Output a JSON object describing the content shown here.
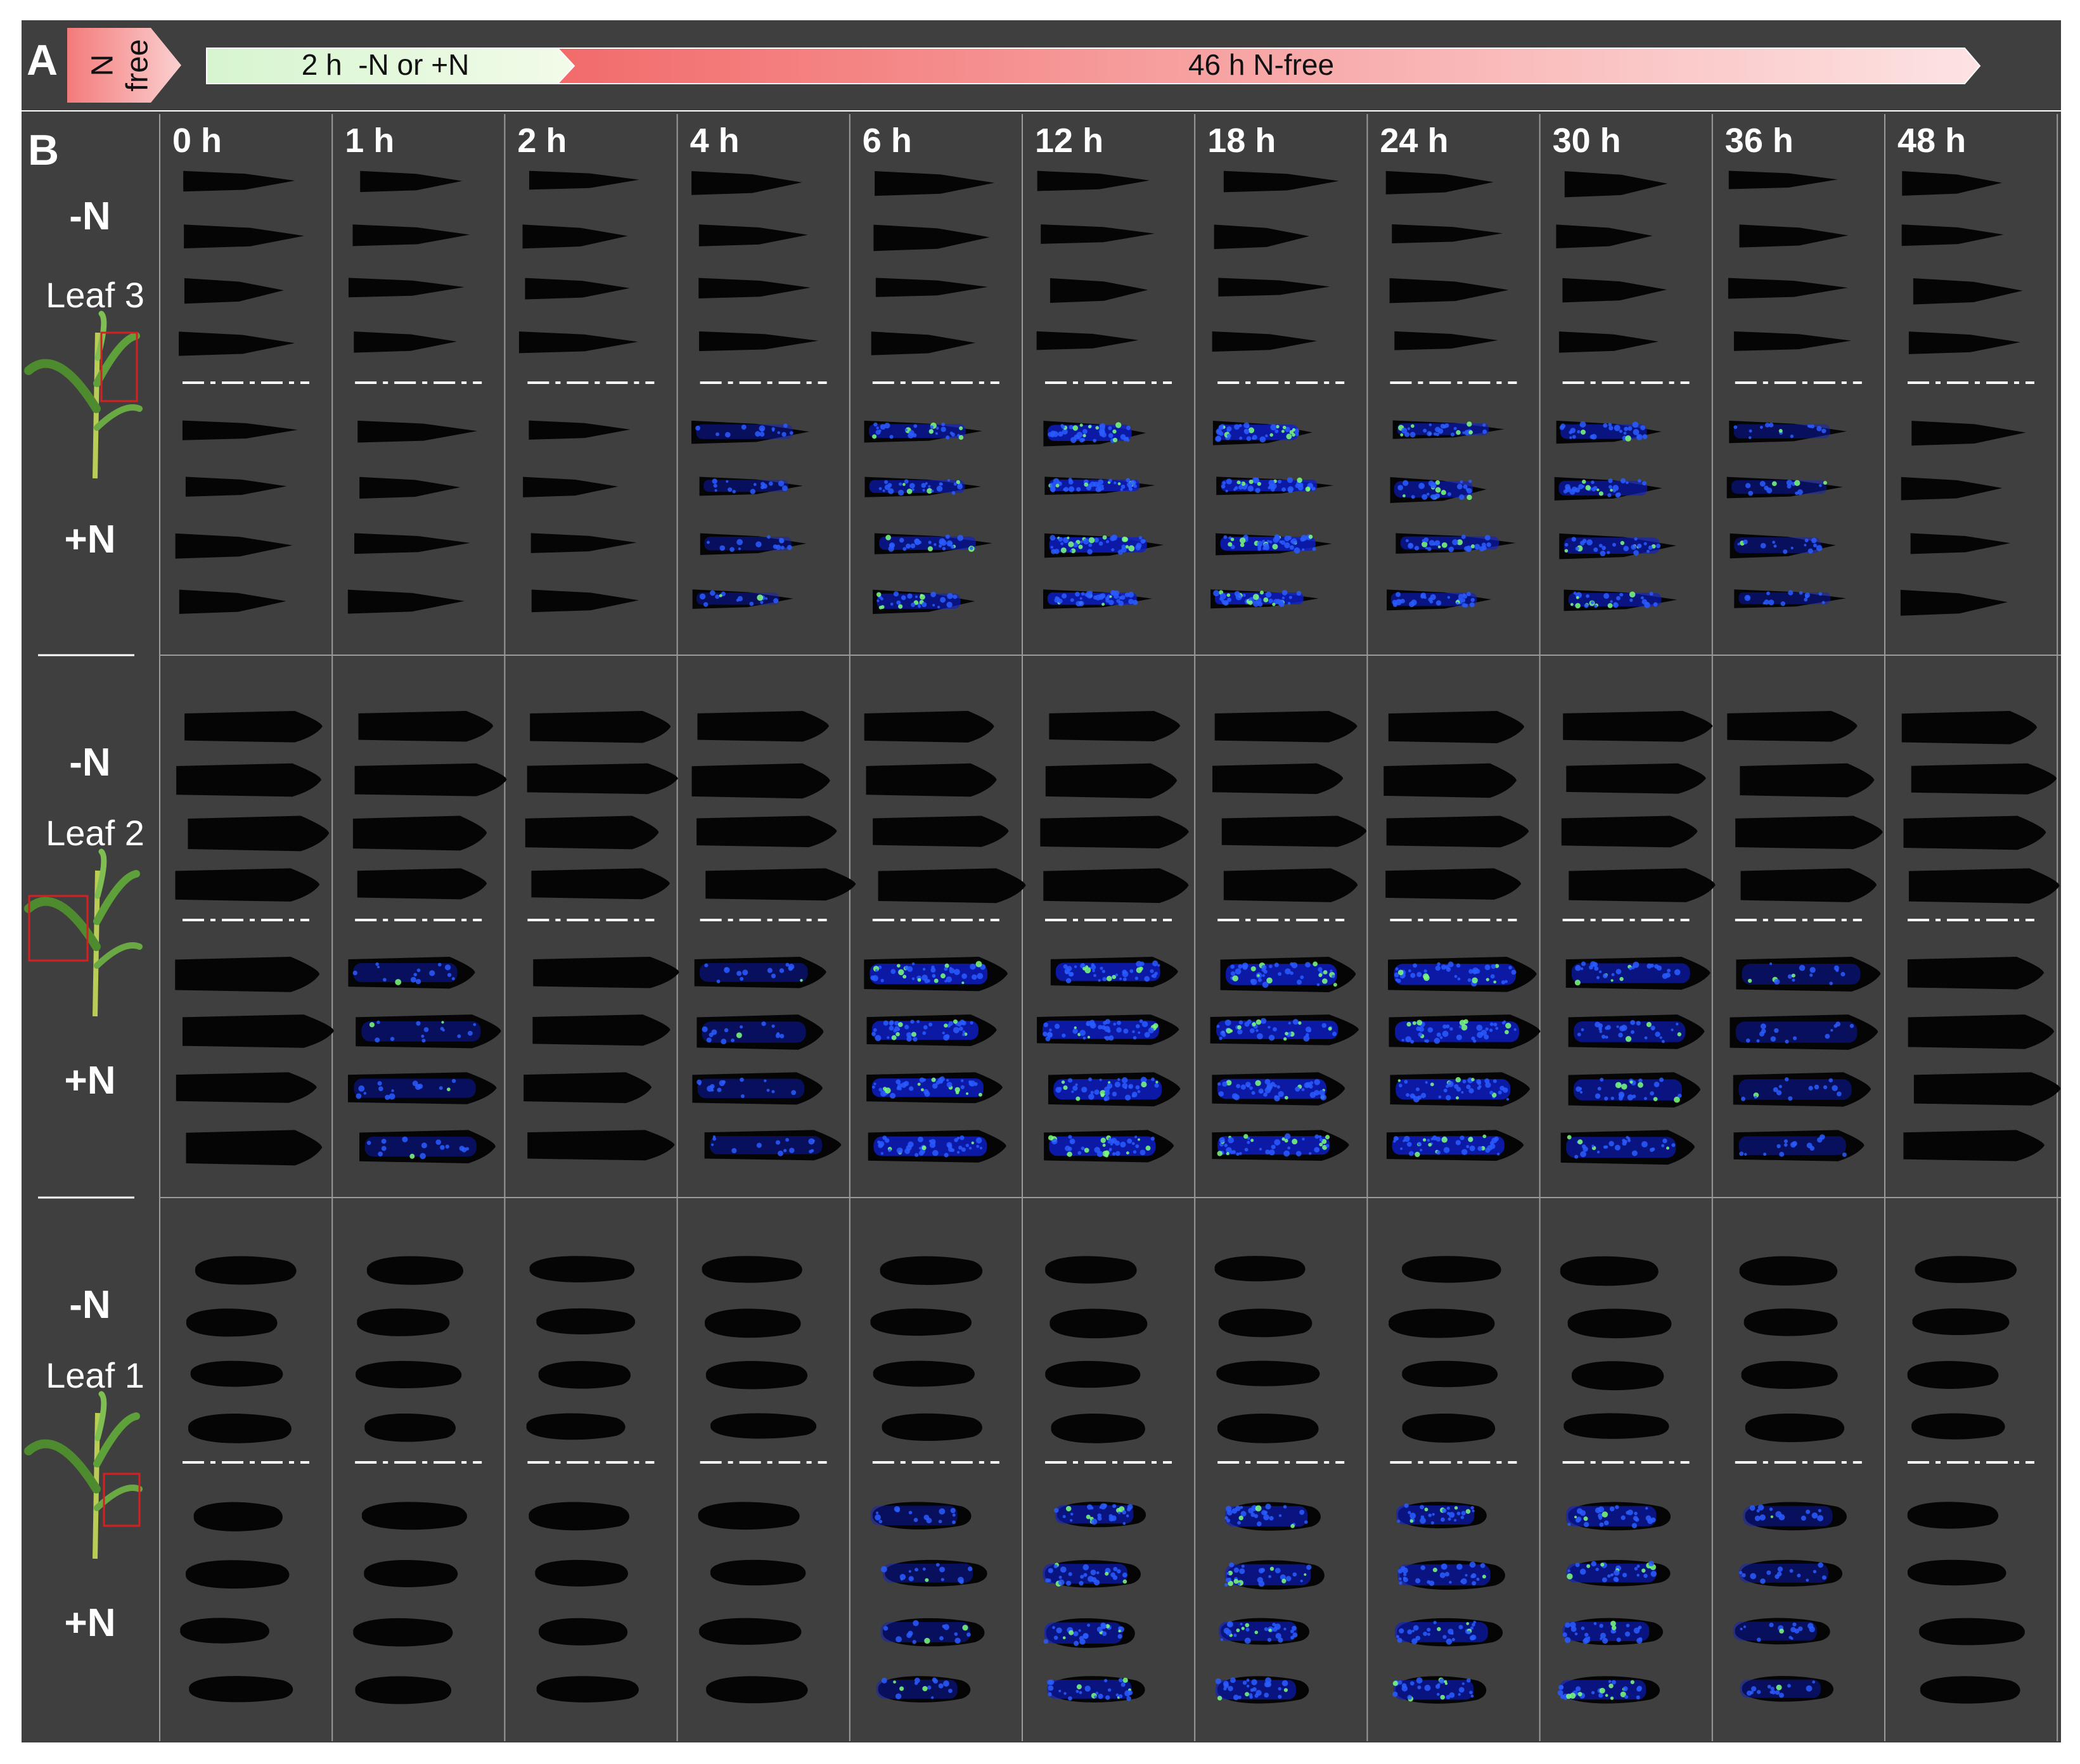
{
  "panel_a": {
    "letter": "A",
    "start_block": {
      "line1": "N",
      "line2": "free"
    },
    "phase1": "2 h  -N or +N",
    "phase2": "46 h N-free"
  },
  "panel_b": {
    "letter": "B",
    "timepoints": [
      "0 h",
      "1 h",
      "2 h",
      "4 h",
      "6 h",
      "12 h",
      "18 h",
      "24 h",
      "30 h",
      "36 h",
      "48 h"
    ],
    "leaves": [
      {
        "name": "Leaf 3",
        "minus_label": "-N",
        "plus_label": "+N",
        "shape": "blade"
      },
      {
        "name": "Leaf 2",
        "minus_label": "-N",
        "plus_label": "+N",
        "shape": "wide"
      },
      {
        "name": "Leaf 1",
        "minus_label": "-N",
        "plus_label": "+N",
        "shape": "oval"
      }
    ],
    "plus_n_signal": [
      [
        0,
        0,
        0,
        1,
        2,
        3,
        3,
        2,
        2,
        1,
        0
      ],
      [
        0,
        1,
        0,
        1,
        3,
        3,
        3,
        3,
        2,
        1,
        0
      ],
      [
        0,
        0,
        0,
        0,
        1,
        2,
        2,
        2,
        2,
        1,
        0
      ]
    ]
  },
  "colors": {
    "background": "#3f3f3f",
    "grid": "#9a9a9a",
    "leaf": "#050505",
    "signal_low": "#0d1fd0",
    "signal_high": "#7dff7a",
    "phase1_start": "#c8f0c0",
    "phase2_start": "#f26b6b"
  }
}
